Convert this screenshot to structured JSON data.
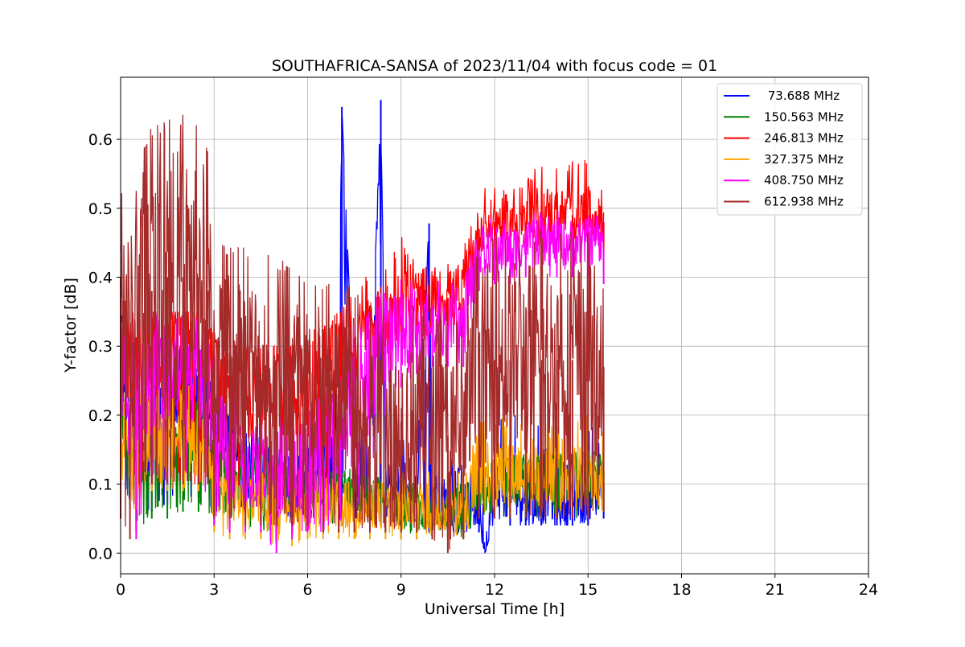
{
  "chart_data": {
    "type": "line",
    "title": "SOUTHAFRICA-SANSA of 2023/11/04 with focus code = 01",
    "xlabel": "Universal Time [h]",
    "ylabel": "Y-factor [dB]",
    "xlim": [
      0,
      24
    ],
    "ylim": [
      -0.03,
      0.69
    ],
    "xticks": [
      0,
      3,
      6,
      9,
      12,
      15,
      18,
      21,
      24
    ],
    "yticks": [
      0.0,
      0.1,
      0.2,
      0.3,
      0.4,
      0.5,
      0.6
    ],
    "xtick_labels": [
      "0",
      "3",
      "6",
      "9",
      "12",
      "15",
      "18",
      "21",
      "24"
    ],
    "ytick_labels": [
      "0.0",
      "0.1",
      "0.2",
      "0.3",
      "0.4",
      "0.5",
      "0.6"
    ],
    "grid": true,
    "legend_position": "top-right",
    "series": [
      {
        "name": " 73.688 MHz",
        "color": "#0000ff",
        "x": [
          0.0,
          0.5,
          1.0,
          1.5,
          2.0,
          2.5,
          3.0,
          3.5,
          4.0,
          4.5,
          5.0,
          5.5,
          6.0,
          6.5,
          7.0,
          7.1,
          7.5,
          8.0,
          8.35,
          8.5,
          9.0,
          9.5,
          9.9,
          10.0,
          10.5,
          11.0,
          11.5,
          11.7,
          12.0,
          12.5,
          13.0,
          13.5,
          14.0,
          14.5,
          15.0,
          15.5
        ],
        "values": [
          0.32,
          0.14,
          0.18,
          0.2,
          0.24,
          0.25,
          0.18,
          0.15,
          0.13,
          0.12,
          0.11,
          0.1,
          0.1,
          0.12,
          0.14,
          0.647,
          0.13,
          0.12,
          0.657,
          0.1,
          0.09,
          0.08,
          0.478,
          0.08,
          0.07,
          0.06,
          0.09,
          0.0,
          0.1,
          0.1,
          0.09,
          0.1,
          0.09,
          0.09,
          0.1,
          0.1
        ],
        "min": [
          0.1,
          0.05,
          0.06,
          0.07,
          0.08,
          0.08,
          0.06,
          0.05,
          0.05,
          0.04,
          0.04,
          0.04,
          0.04,
          0.04,
          0.04,
          0.04,
          0.04,
          0.04,
          0.04,
          0.04,
          0.04,
          0.03,
          0.03,
          0.03,
          0.03,
          0.03,
          0.03,
          0.0,
          0.05,
          0.04,
          0.04,
          0.04,
          0.04,
          0.04,
          0.04,
          0.05
        ],
        "max": [
          0.35,
          0.2,
          0.25,
          0.3,
          0.3,
          0.3,
          0.25,
          0.2,
          0.2,
          0.18,
          0.17,
          0.17,
          0.16,
          0.2,
          0.3,
          0.647,
          0.2,
          0.2,
          0.657,
          0.2,
          0.17,
          0.15,
          0.478,
          0.15,
          0.14,
          0.13,
          0.2,
          0.12,
          0.2,
          0.2,
          0.2,
          0.2,
          0.2,
          0.2,
          0.2,
          0.15
        ]
      },
      {
        "name": "150.563 MHz",
        "color": "#008000",
        "x": [
          0.0,
          0.5,
          1.0,
          1.5,
          2.0,
          2.5,
          3.0,
          3.5,
          4.0,
          4.5,
          5.0,
          5.5,
          6.0,
          6.5,
          7.0,
          7.5,
          8.0,
          8.5,
          9.0,
          9.5,
          10.0,
          10.5,
          11.0,
          11.5,
          12.0,
          12.5,
          13.0,
          13.5,
          14.0,
          14.5,
          15.0,
          15.5
        ],
        "values": [
          0.2,
          0.12,
          0.15,
          0.16,
          0.18,
          0.18,
          0.14,
          0.12,
          0.11,
          0.1,
          0.1,
          0.09,
          0.09,
          0.09,
          0.09,
          0.09,
          0.08,
          0.08,
          0.07,
          0.07,
          0.06,
          0.06,
          0.06,
          0.1,
          0.11,
          0.11,
          0.11,
          0.11,
          0.11,
          0.11,
          0.11,
          0.12
        ],
        "min": [
          0.1,
          0.03,
          0.05,
          0.05,
          0.06,
          0.06,
          0.05,
          0.04,
          0.04,
          0.03,
          0.03,
          0.03,
          0.03,
          0.03,
          0.03,
          0.03,
          0.03,
          0.03,
          0.02,
          0.02,
          0.02,
          0.02,
          0.02,
          0.05,
          0.05,
          0.05,
          0.05,
          0.05,
          0.05,
          0.05,
          0.05,
          0.06
        ],
        "max": [
          0.25,
          0.18,
          0.2,
          0.22,
          0.22,
          0.22,
          0.18,
          0.16,
          0.15,
          0.14,
          0.14,
          0.13,
          0.13,
          0.13,
          0.13,
          0.13,
          0.12,
          0.12,
          0.11,
          0.11,
          0.1,
          0.1,
          0.1,
          0.15,
          0.15,
          0.15,
          0.15,
          0.15,
          0.15,
          0.15,
          0.15,
          0.15
        ]
      },
      {
        "name": "246.813 MHz",
        "color": "#ff0000",
        "x": [
          0.0,
          0.5,
          1.0,
          1.5,
          2.0,
          2.5,
          3.0,
          3.5,
          4.0,
          4.5,
          5.0,
          5.5,
          6.0,
          6.5,
          7.0,
          7.5,
          8.0,
          8.5,
          9.0,
          9.5,
          10.0,
          10.5,
          11.0,
          11.5,
          12.0,
          12.5,
          13.0,
          13.5,
          14.0,
          14.5,
          15.0,
          15.5
        ],
        "values": [
          0.3,
          0.25,
          0.28,
          0.3,
          0.3,
          0.3,
          0.26,
          0.25,
          0.24,
          0.24,
          0.24,
          0.24,
          0.25,
          0.26,
          0.28,
          0.3,
          0.32,
          0.34,
          0.36,
          0.37,
          0.37,
          0.37,
          0.37,
          0.47,
          0.48,
          0.48,
          0.48,
          0.49,
          0.49,
          0.49,
          0.49,
          0.48
        ],
        "min": [
          0.1,
          0.1,
          0.1,
          0.1,
          0.1,
          0.1,
          0.08,
          0.08,
          0.08,
          0.08,
          0.08,
          0.08,
          0.08,
          0.08,
          0.1,
          0.2,
          0.25,
          0.27,
          0.3,
          0.3,
          0.3,
          0.3,
          0.3,
          0.43,
          0.44,
          0.44,
          0.44,
          0.44,
          0.45,
          0.45,
          0.45,
          0.44
        ],
        "max": [
          0.4,
          0.35,
          0.35,
          0.35,
          0.35,
          0.35,
          0.32,
          0.3,
          0.3,
          0.3,
          0.3,
          0.3,
          0.32,
          0.33,
          0.35,
          0.38,
          0.41,
          0.42,
          0.46,
          0.42,
          0.42,
          0.42,
          0.44,
          0.53,
          0.54,
          0.54,
          0.54,
          0.58,
          0.56,
          0.57,
          0.57,
          0.52
        ]
      },
      {
        "name": "327.375 MHz",
        "color": "#ffa500",
        "x": [
          0.0,
          0.5,
          1.0,
          1.5,
          2.0,
          2.5,
          3.0,
          3.5,
          4.0,
          4.5,
          5.0,
          5.5,
          6.0,
          6.5,
          7.0,
          7.5,
          8.0,
          8.5,
          9.0,
          9.5,
          10.0,
          10.5,
          11.0,
          11.5,
          12.0,
          12.5,
          13.0,
          13.5,
          14.0,
          14.5,
          15.0,
          15.5
        ],
        "values": [
          0.18,
          0.15,
          0.17,
          0.17,
          0.17,
          0.16,
          0.1,
          0.08,
          0.08,
          0.08,
          0.08,
          0.08,
          0.08,
          0.08,
          0.07,
          0.07,
          0.07,
          0.07,
          0.07,
          0.07,
          0.07,
          0.06,
          0.06,
          0.12,
          0.12,
          0.12,
          0.12,
          0.12,
          0.12,
          0.12,
          0.12,
          0.12
        ],
        "min": [
          0.1,
          0.04,
          0.09,
          0.09,
          0.09,
          0.09,
          0.03,
          0.02,
          0.02,
          0.02,
          0.01,
          0.01,
          0.02,
          0.02,
          0.02,
          0.02,
          0.02,
          0.02,
          0.02,
          0.02,
          0.02,
          0.02,
          0.02,
          0.05,
          0.06,
          0.06,
          0.06,
          0.06,
          0.06,
          0.06,
          0.06,
          0.06
        ],
        "max": [
          0.25,
          0.25,
          0.25,
          0.25,
          0.25,
          0.25,
          0.15,
          0.12,
          0.12,
          0.12,
          0.12,
          0.12,
          0.12,
          0.12,
          0.12,
          0.12,
          0.12,
          0.12,
          0.12,
          0.12,
          0.12,
          0.12,
          0.12,
          0.2,
          0.2,
          0.2,
          0.2,
          0.2,
          0.2,
          0.2,
          0.2,
          0.18
        ]
      },
      {
        "name": "408.750 MHz",
        "color": "#ff00ff",
        "x": [
          0.0,
          0.5,
          1.0,
          1.5,
          2.0,
          2.5,
          3.0,
          3.5,
          4.0,
          4.5,
          5.0,
          5.5,
          6.0,
          6.5,
          7.0,
          7.5,
          8.0,
          8.5,
          9.0,
          9.5,
          10.0,
          10.5,
          11.0,
          11.5,
          12.0,
          12.5,
          13.0,
          13.5,
          14.0,
          14.5,
          15.0,
          15.5
        ],
        "values": [
          0.25,
          0.22,
          0.26,
          0.26,
          0.26,
          0.25,
          0.16,
          0.13,
          0.12,
          0.12,
          0.12,
          0.12,
          0.13,
          0.14,
          0.16,
          0.2,
          0.26,
          0.3,
          0.32,
          0.33,
          0.33,
          0.33,
          0.33,
          0.44,
          0.44,
          0.44,
          0.45,
          0.45,
          0.45,
          0.45,
          0.45,
          0.44
        ],
        "min": [
          0.1,
          0.02,
          0.1,
          0.1,
          0.1,
          0.1,
          0.04,
          0.03,
          0.03,
          0.03,
          0.0,
          0.02,
          0.03,
          0.03,
          0.04,
          0.04,
          0.1,
          0.2,
          0.24,
          0.26,
          0.27,
          0.27,
          0.27,
          0.38,
          0.39,
          0.39,
          0.4,
          0.4,
          0.4,
          0.4,
          0.4,
          0.39
        ],
        "max": [
          0.35,
          0.35,
          0.35,
          0.35,
          0.35,
          0.34,
          0.3,
          0.25,
          0.2,
          0.2,
          0.2,
          0.2,
          0.22,
          0.25,
          0.3,
          0.35,
          0.38,
          0.38,
          0.4,
          0.4,
          0.4,
          0.4,
          0.4,
          0.48,
          0.49,
          0.49,
          0.49,
          0.5,
          0.5,
          0.5,
          0.5,
          0.49
        ]
      },
      {
        "name": "612.938 MHz",
        "color": "#a52a2a",
        "x": [
          0.0,
          0.3,
          0.6,
          1.0,
          1.5,
          2.0,
          2.5,
          2.8,
          3.0,
          3.5,
          4.0,
          4.5,
          5.0,
          5.5,
          6.0,
          6.5,
          7.0,
          7.5,
          8.0,
          8.5,
          9.0,
          9.5,
          10.0,
          10.5,
          11.0,
          11.5,
          12.0,
          12.5,
          13.0,
          13.5,
          14.0,
          14.5,
          15.0,
          15.5
        ],
        "values": [
          0.4,
          0.3,
          0.4,
          0.38,
          0.4,
          0.4,
          0.4,
          0.38,
          0.28,
          0.28,
          0.27,
          0.26,
          0.26,
          0.25,
          0.24,
          0.23,
          0.22,
          0.21,
          0.2,
          0.2,
          0.19,
          0.18,
          0.18,
          0.17,
          0.17,
          0.27,
          0.28,
          0.28,
          0.28,
          0.28,
          0.28,
          0.28,
          0.28,
          0.27
        ],
        "min": [
          0.05,
          0.02,
          0.1,
          0.1,
          0.1,
          0.1,
          0.1,
          0.1,
          0.05,
          0.05,
          0.04,
          0.04,
          0.04,
          0.04,
          0.04,
          0.03,
          0.03,
          0.03,
          0.03,
          0.03,
          0.03,
          0.03,
          0.02,
          0.0,
          0.02,
          0.05,
          0.05,
          0.05,
          0.05,
          0.05,
          0.05,
          0.05,
          0.05,
          0.06
        ],
        "max": [
          0.54,
          0.45,
          0.57,
          0.62,
          0.63,
          0.64,
          0.64,
          0.6,
          0.46,
          0.45,
          0.45,
          0.44,
          0.43,
          0.42,
          0.41,
          0.4,
          0.4,
          0.39,
          0.38,
          0.38,
          0.37,
          0.36,
          0.35,
          0.35,
          0.34,
          0.47,
          0.47,
          0.47,
          0.47,
          0.47,
          0.47,
          0.47,
          0.47,
          0.46
        ]
      }
    ]
  }
}
